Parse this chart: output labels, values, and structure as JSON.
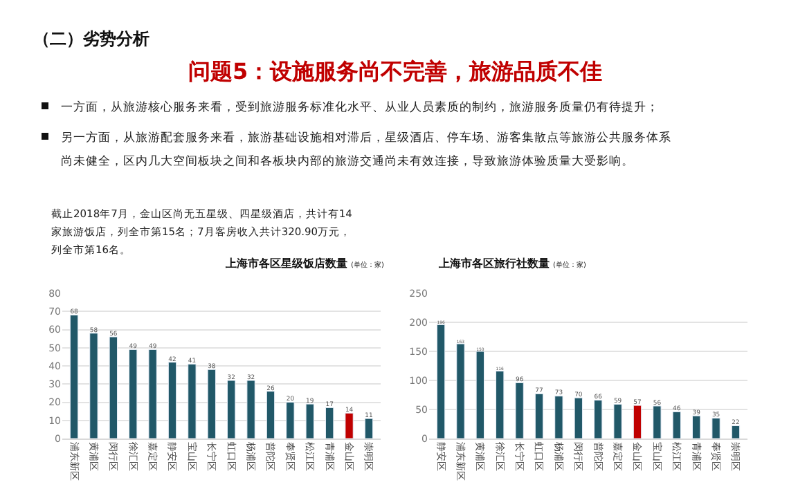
{
  "chart_data": [
    {
      "type": "other",
      "title": "（二）劣势分析",
      "subtitle": "问题5：设施服务尚不完善，旅游品质不佳",
      "annotations": [
        "一方面，从旅游核心服务来看，受到旅游服务标准化水平、从业人员素质的制约，旅游服务质量仍有待提升；",
        "另一方面，从旅游配套服务来看，旅游基础设施相对滞后，星级酒店、停车场、游客集散点等旅游公共服务体系",
        "尚未健全，区内几大空间板块之间和各板块内部的旅游交通尚未有效连接，导致旅游体验质量大受影响。",
        "截止2018年7月，金山区尚无五星级、四星级酒店，共计有14",
        "家旅游饭店，列全市第15名；7月客房收入共计320.90万元，",
        "列全市第16名。"
      ]
    },
    {
      "type": "bar",
      "title": "上海市各区星级饭店数量 (单位：家)",
      "categories": [
        "浦东新区",
        "黄浦区",
        "闵行区",
        "徐汇区",
        "嘉定区",
        "静安区",
        "宝山区",
        "长宁区",
        "虹口区",
        "杨浦区",
        "普陀区",
        "奉贤区",
        "松江区",
        "青浦区",
        "金山区",
        "崇明区"
      ],
      "values": [
        68,
        58,
        56,
        49,
        49,
        42,
        41,
        38,
        32,
        32,
        26,
        20,
        19,
        17,
        14,
        11
      ],
      "colors": [
        "#215868",
        "#215868",
        "#215868",
        "#215868",
        "#215868",
        "#215868",
        "#215868",
        "#215868",
        "#215868",
        "#215868",
        "#215868",
        "#215868",
        "#215868",
        "#215868",
        "#c00000",
        "#215868"
      ],
      "ylim": [
        0,
        80
      ],
      "yticks": [
        0,
        10,
        20,
        30,
        40,
        50,
        60,
        70,
        80
      ],
      "grid": "y",
      "data_labels": true
    },
    {
      "type": "bar",
      "title": "上海市各区旅行社数量 (单位：家)",
      "categories": [
        "静安区",
        "浦东新区",
        "黄浦区",
        "徐汇区",
        "长宁区",
        "虹口区",
        "杨浦区",
        "闵行区",
        "普陀区",
        "嘉定区",
        "金山区",
        "宝山区",
        "松江区",
        "青浦区",
        "奉贤区",
        "崇明区"
      ],
      "values": [
        196,
        163,
        150,
        116,
        96,
        77,
        73,
        70,
        66,
        59,
        57,
        56,
        46,
        39,
        35,
        22
      ],
      "colors": [
        "#215868",
        "#215868",
        "#215868",
        "#215868",
        "#215868",
        "#215868",
        "#215868",
        "#215868",
        "#215868",
        "#215868",
        "#c00000",
        "#215868",
        "#215868",
        "#215868",
        "#215868",
        "#215868"
      ],
      "ylim": [
        0,
        250
      ],
      "yticks": [
        0,
        50,
        100,
        150,
        200,
        250
      ],
      "grid": "y",
      "data_labels": true
    }
  ]
}
